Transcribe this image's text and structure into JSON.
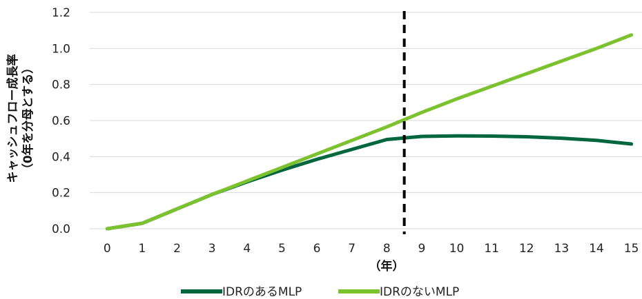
{
  "chart_data": {
    "type": "line",
    "x": [
      0,
      1,
      2,
      3,
      4,
      5,
      6,
      7,
      8,
      9,
      10,
      11,
      12,
      13,
      14,
      15
    ],
    "series": [
      {
        "name": "IDRのあるMLP",
        "color": "#00663d",
        "values": [
          0.0,
          0.03,
          0.11,
          0.19,
          0.26,
          0.325,
          0.385,
          0.44,
          0.495,
          0.512,
          0.515,
          0.514,
          0.51,
          0.502,
          0.49,
          0.47
        ]
      },
      {
        "name": "IDRのないMLP",
        "color": "#7cc22f",
        "values": [
          0.0,
          0.03,
          0.11,
          0.19,
          0.265,
          0.34,
          0.415,
          0.49,
          0.565,
          0.645,
          0.72,
          0.79,
          0.86,
          0.93,
          1.0,
          1.075
        ]
      }
    ],
    "xlabel": "（年）",
    "ylabel_line1": "キャッシュフロー成長率",
    "ylabel_line2": "（0年を分母とする）",
    "ylim": [
      0,
      1.2
    ],
    "yticks": [
      "0.0",
      "0.2",
      "0.4",
      "0.6",
      "0.8",
      "1.0",
      "1.2"
    ],
    "xticks": [
      "0",
      "1",
      "2",
      "3",
      "4",
      "5",
      "6",
      "7",
      "8",
      "9",
      "10",
      "11",
      "12",
      "13",
      "14",
      "15"
    ],
    "vertical_marker_x": 8.5,
    "grid": "horizontal",
    "legend_position": "bottom"
  }
}
